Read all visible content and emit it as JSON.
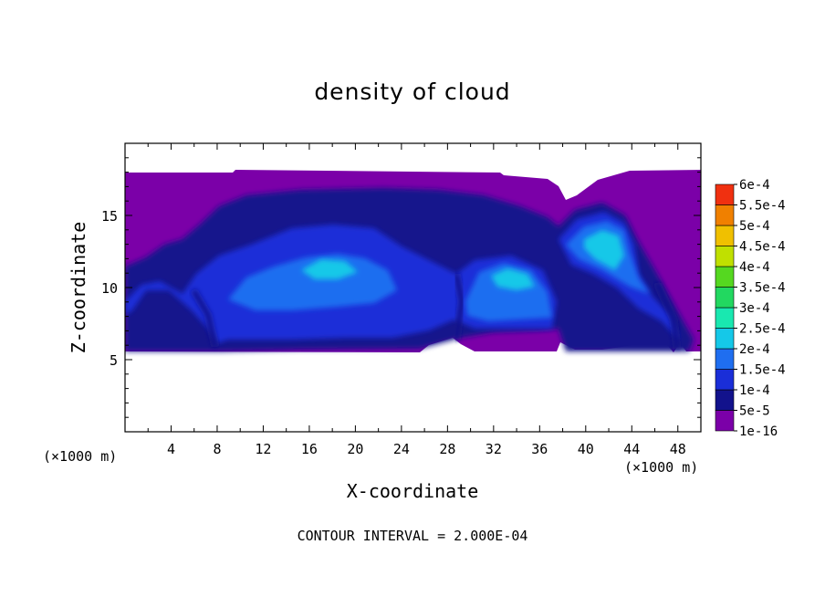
{
  "chart_data": {
    "type": "heatmap",
    "title": "density of cloud",
    "xlabel": "X-coordinate",
    "ylabel": "Z-coordinate",
    "x_unit_label_left": "(×1000 m)",
    "x_unit_label_right": "(×1000 m)",
    "footnote": "CONTOUR INTERVAL = 2.000E-04",
    "xlim": [
      0,
      50
    ],
    "ylim": [
      0,
      20
    ],
    "x_ticks": [
      4,
      8,
      12,
      16,
      20,
      24,
      28,
      32,
      36,
      40,
      44,
      48
    ],
    "y_ticks": [
      5,
      10,
      15
    ],
    "colorbar": {
      "levels": [
        "1e-16",
        "5e-5",
        "1e-4",
        "1.5e-4",
        "2e-4",
        "2.5e-4",
        "3e-4",
        "3.5e-4",
        "4e-4",
        "4.5e-4",
        "5e-4",
        "5.5e-4",
        "6e-4"
      ],
      "colors": [
        "#7b00a8",
        "#12128c",
        "#1a2ed8",
        "#1f6ef0",
        "#15c8e8",
        "#19e8b0",
        "#22d860",
        "#55d820",
        "#c0e000",
        "#f0c000",
        "#f08000",
        "#f03010",
        "#f0a0a0"
      ]
    },
    "cloud_layer": {
      "base_km": 5.5,
      "top_km": 18,
      "max_density_region": "approx. 1.5e-4 to 2e-4 near x=18-20, 30-34, 40-44 km"
    }
  }
}
